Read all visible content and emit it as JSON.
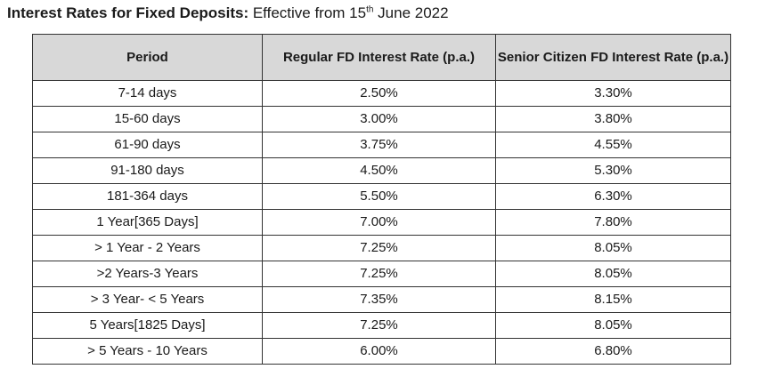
{
  "title": {
    "bold": "Interest Rates for Fixed Deposits:",
    "normal_before_sup": " Effective from 15",
    "sup": "th",
    "normal_after_sup": " June 2022"
  },
  "table": {
    "headers": [
      "Period",
      "Regular FD Interest Rate (p.a.)",
      "Senior Citizen FD Interest Rate (p.a.)"
    ],
    "rows": [
      [
        "7-14 days",
        "2.50%",
        "3.30%"
      ],
      [
        "15-60 days",
        "3.00%",
        "3.80%"
      ],
      [
        "61-90 days",
        "3.75%",
        "4.55%"
      ],
      [
        "91-180 days",
        "4.50%",
        "5.30%"
      ],
      [
        "181-364 days",
        "5.50%",
        "6.30%"
      ],
      [
        "1 Year[365 Days]",
        "7.00%",
        "7.80%"
      ],
      [
        "> 1 Year - 2 Years",
        "7.25%",
        "8.05%"
      ],
      [
        ">2 Years-3 Years",
        "7.25%",
        "8.05%"
      ],
      [
        "> 3 Year- < 5 Years",
        "7.35%",
        "8.15%"
      ],
      [
        "5 Years[1825 Days]",
        "7.25%",
        "8.05%"
      ],
      [
        "> 5 Years - 10 Years",
        "6.00%",
        "6.80%"
      ]
    ]
  }
}
